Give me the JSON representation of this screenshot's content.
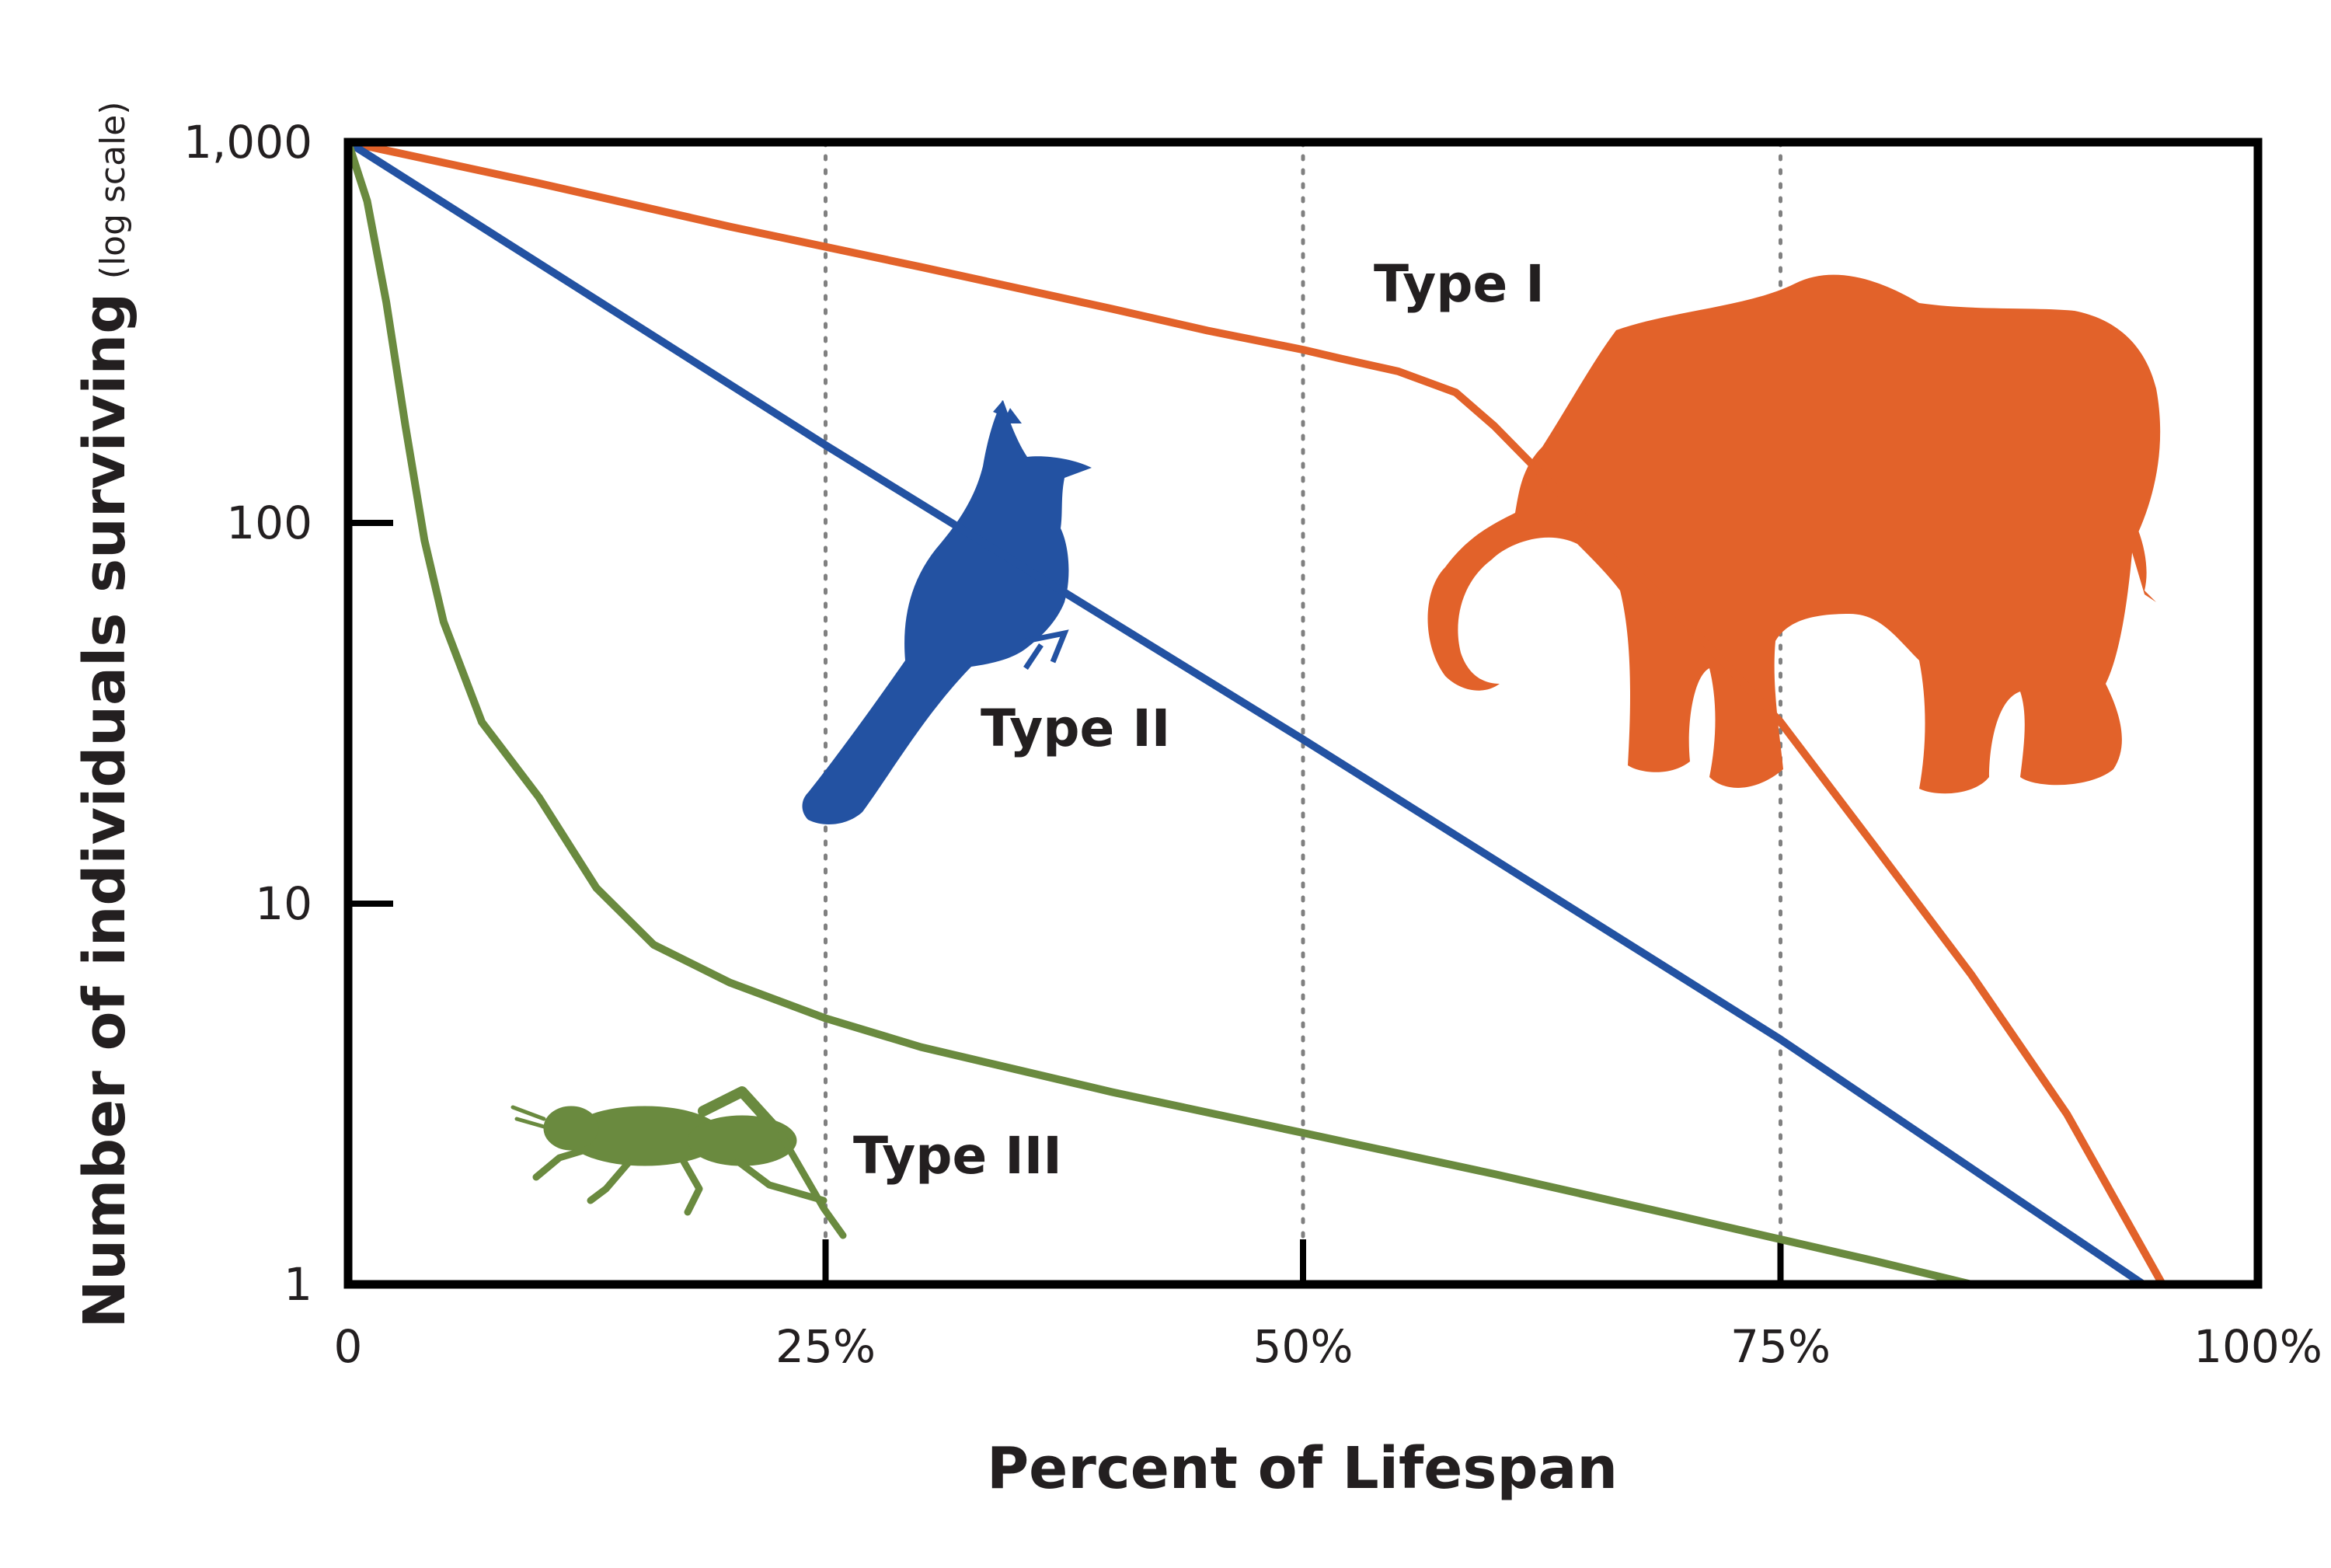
{
  "chart_data": {
    "type": "line",
    "x_scale": "linear",
    "y_scale": "log",
    "xlabel": "Percent of Lifespan",
    "ylabel_main": "Number of individuals surviving",
    "ylabel_note": "(log scale)",
    "xlim": [
      0,
      100
    ],
    "ylim": [
      1,
      1000
    ],
    "x_ticks": [
      {
        "value": 0,
        "label": "0"
      },
      {
        "value": 25,
        "label": "25%"
      },
      {
        "value": 50,
        "label": "50%"
      },
      {
        "value": 75,
        "label": "75%"
      },
      {
        "value": 100,
        "label": "100%"
      }
    ],
    "y_ticks": [
      {
        "value": 1,
        "label": "1"
      },
      {
        "value": 10,
        "label": "10"
      },
      {
        "value": 100,
        "label": "100"
      },
      {
        "value": 1000,
        "label": "1,000"
      }
    ],
    "grid": "vertical dotted at 25%, 50%, 75%",
    "series": [
      {
        "name": "Type I",
        "color": "#e2622a",
        "icon": "elephant-icon",
        "x": [
          0,
          10,
          20,
          30,
          40,
          45,
          50,
          52,
          55,
          58,
          60,
          65,
          70,
          75,
          80,
          85,
          90,
          95
        ],
        "y": [
          1000,
          780,
          600,
          470,
          365,
          320,
          285,
          270,
          250,
          220,
          180,
          100,
          55,
          30,
          14,
          6.5,
          2.8,
          1
        ]
      },
      {
        "name": "Type II",
        "color": "#2352a2",
        "icon": "cardinal-bird-icon",
        "x": [
          0,
          25,
          50,
          75,
          94
        ],
        "y": [
          1000,
          160,
          27,
          4.4,
          1
        ]
      },
      {
        "name": "Type III",
        "color": "#6a8a3f",
        "icon": "cricket-icon",
        "x": [
          0,
          1,
          2,
          3,
          4,
          5,
          7,
          10,
          13,
          16,
          20,
          25,
          30,
          40,
          50,
          60,
          70,
          80,
          85
        ],
        "y": [
          1000,
          700,
          380,
          180,
          90,
          55,
          30,
          19,
          11,
          7.8,
          6.2,
          5,
          4.2,
          3.2,
          2.5,
          1.95,
          1.5,
          1.15,
          1
        ]
      }
    ]
  }
}
